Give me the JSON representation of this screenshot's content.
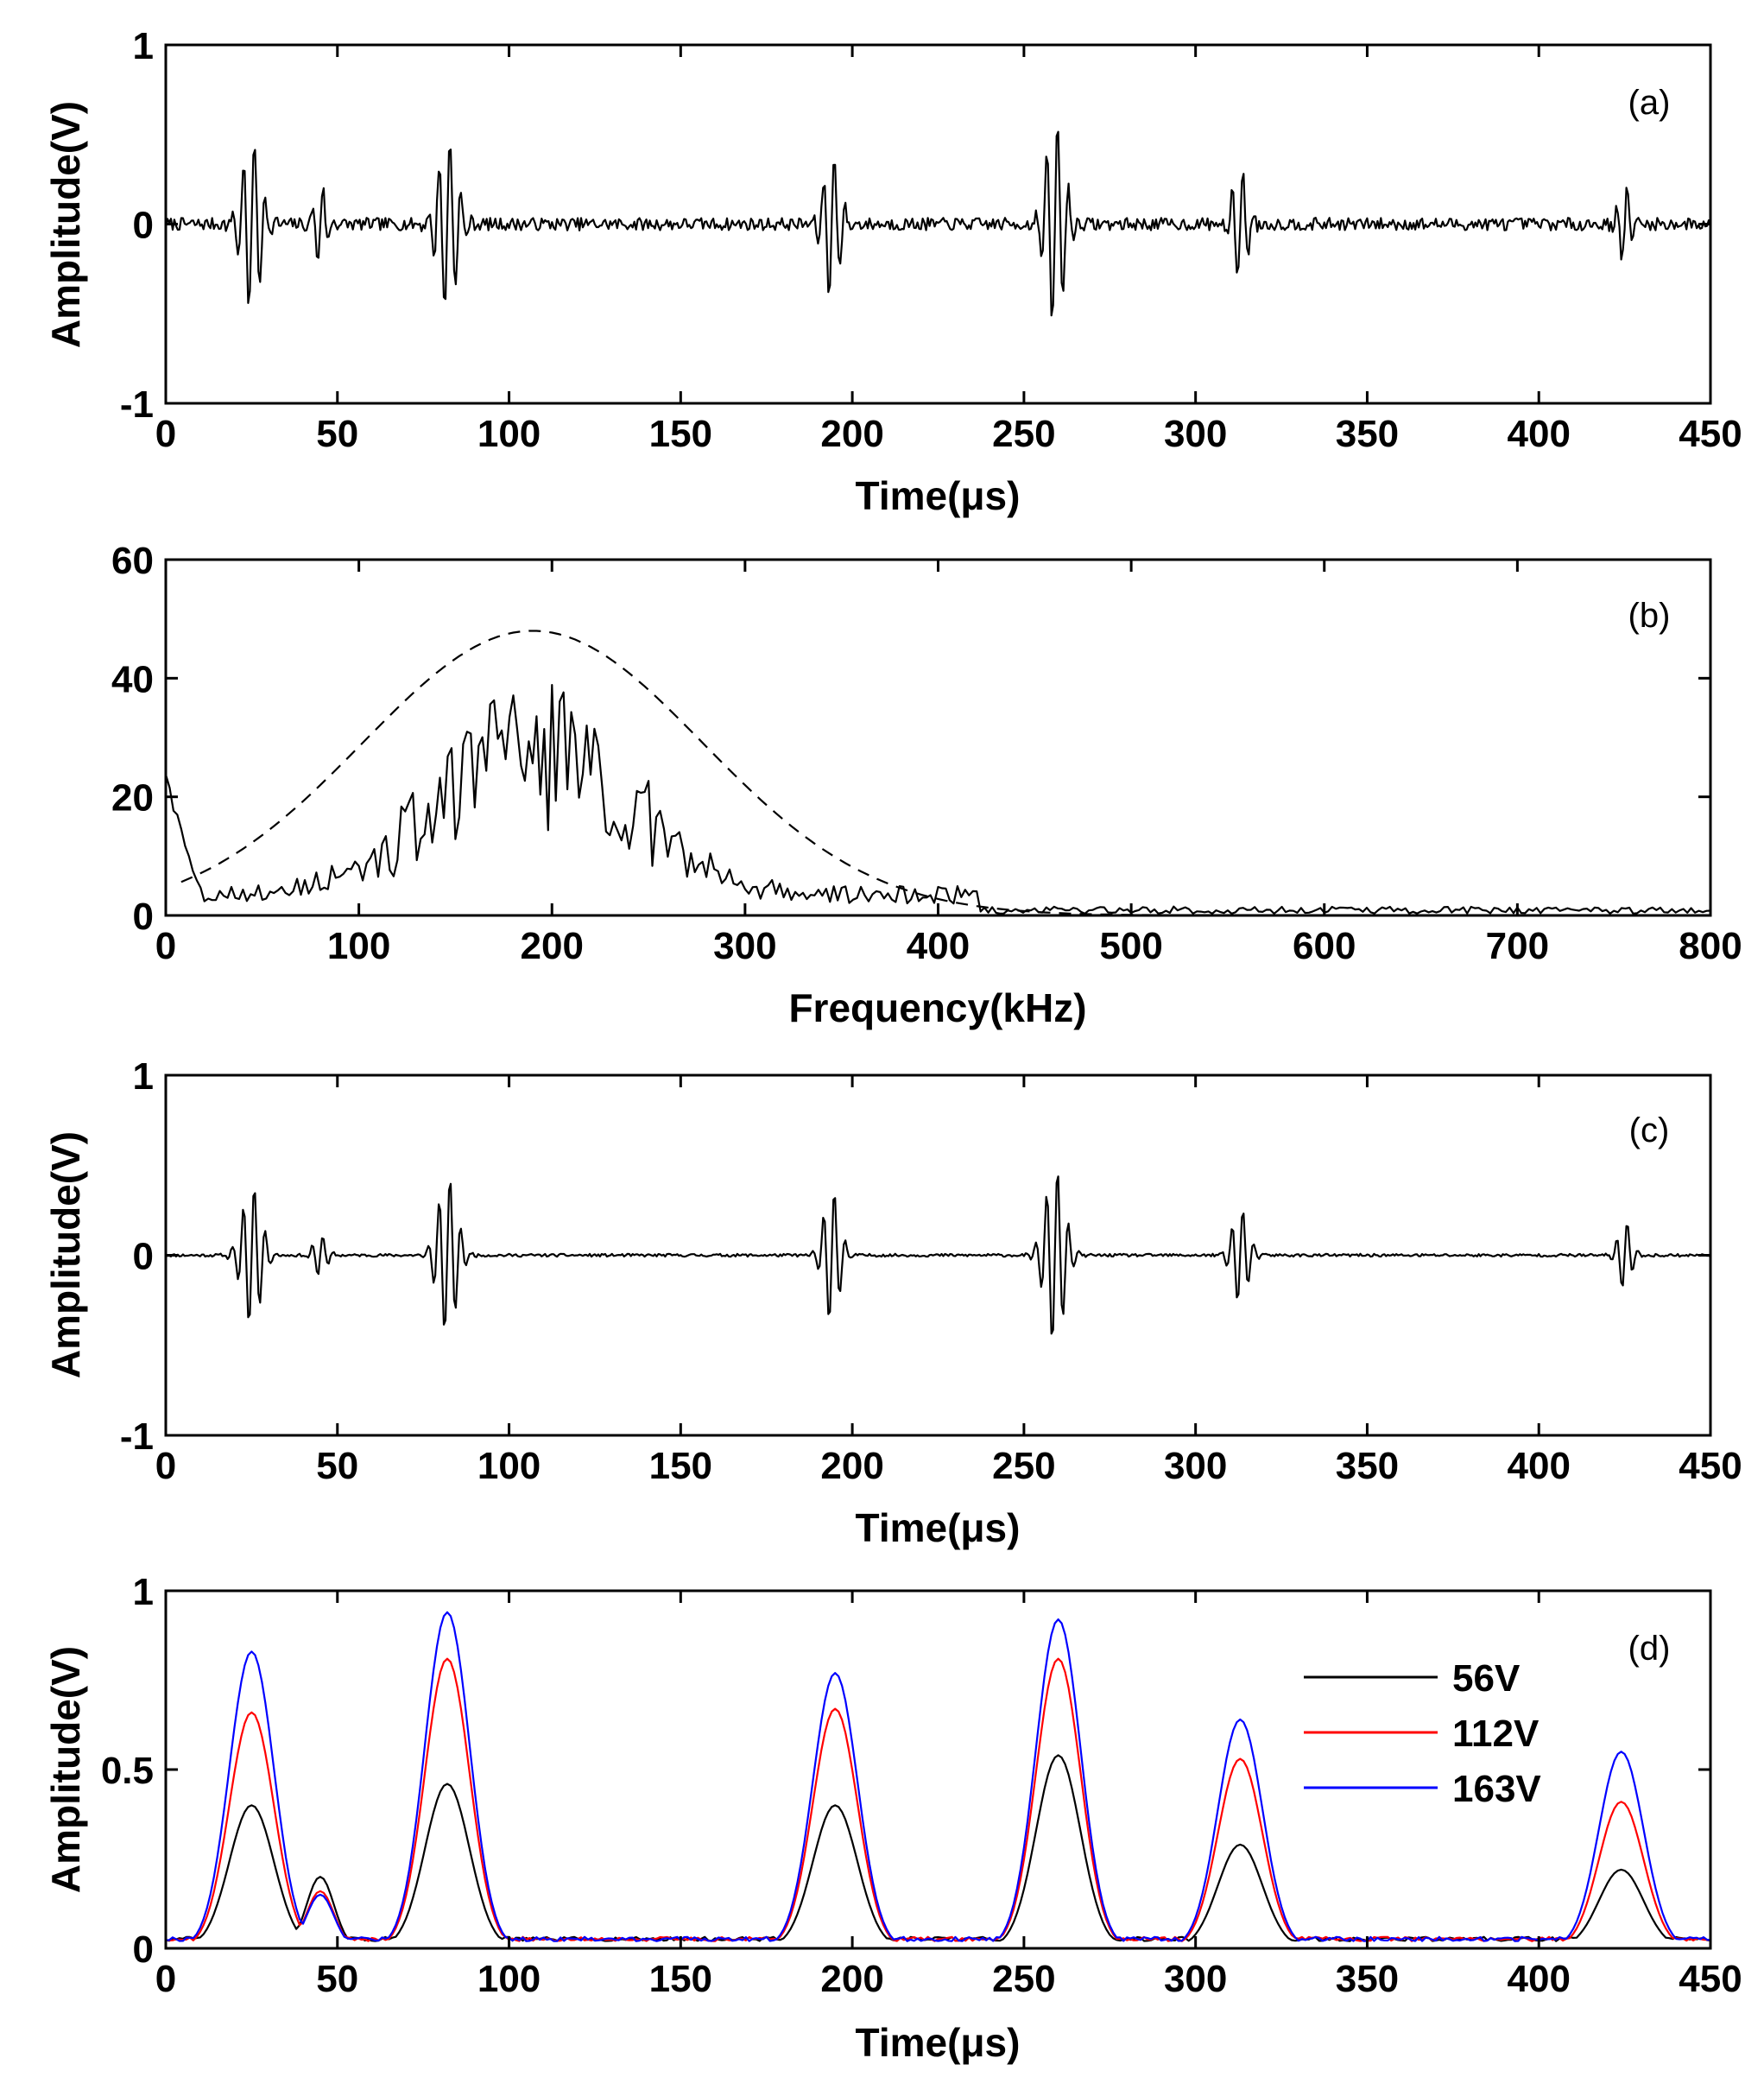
{
  "chart_data": [
    {
      "panel": "(a)",
      "type": "line",
      "xlabel": "Time(μs)",
      "ylabel": "Amplitude(V)",
      "xlim": [
        0,
        450
      ],
      "ylim": [
        -1,
        1
      ],
      "xticks": [
        0,
        50,
        100,
        150,
        200,
        250,
        300,
        350,
        400,
        450
      ],
      "yticks": [
        -1,
        0,
        1
      ],
      "grid": false,
      "series": [
        {
          "color": "#000000",
          "noise": 0.035,
          "packets": [
            {
              "t": 25,
              "amp": 0.5,
              "width": 6
            },
            {
              "t": 45,
              "amp": 0.22,
              "width": 4
            },
            {
              "t": 82,
              "amp": 0.5,
              "width": 6
            },
            {
              "t": 194,
              "amp": 0.42,
              "width": 5
            },
            {
              "t": 259,
              "amp": 0.58,
              "width": 6
            },
            {
              "t": 313,
              "amp": 0.3,
              "width": 5
            },
            {
              "t": 425,
              "amp": 0.22,
              "width": 4
            }
          ]
        }
      ]
    },
    {
      "panel": "(b)",
      "type": "line",
      "xlabel": "Frequency(kHz)",
      "ylabel": "",
      "xlim": [
        0,
        800
      ],
      "ylim": [
        0,
        60
      ],
      "xticks": [
        0,
        100,
        200,
        300,
        400,
        500,
        600,
        700,
        800
      ],
      "yticks": [
        0,
        20,
        40,
        60
      ],
      "grid": false,
      "series": [
        {
          "style": "solid",
          "color": "#000000",
          "center": 190,
          "peak": 32,
          "sigma": 48,
          "start": 22
        },
        {
          "style": "dashed",
          "color": "#000000",
          "center": 190,
          "peak": 48,
          "sigma": 88
        }
      ]
    },
    {
      "panel": "(c)",
      "type": "line",
      "xlabel": "Time(μs)",
      "ylabel": "Amplitude(V)",
      "xlim": [
        0,
        450
      ],
      "ylim": [
        -1,
        1
      ],
      "xticks": [
        0,
        50,
        100,
        150,
        200,
        250,
        300,
        350,
        400,
        450
      ],
      "yticks": [
        -1,
        0,
        1
      ],
      "grid": false,
      "series": [
        {
          "color": "#000000",
          "noise": 0.008,
          "packets": [
            {
              "t": 25,
              "amp": 0.4,
              "width": 6
            },
            {
              "t": 45,
              "amp": 0.12,
              "width": 4
            },
            {
              "t": 82,
              "amp": 0.45,
              "width": 6
            },
            {
              "t": 194,
              "amp": 0.38,
              "width": 5
            },
            {
              "t": 259,
              "amp": 0.5,
              "width": 6
            },
            {
              "t": 313,
              "amp": 0.27,
              "width": 5
            },
            {
              "t": 425,
              "amp": 0.2,
              "width": 4
            }
          ]
        }
      ]
    },
    {
      "panel": "(d)",
      "type": "line",
      "xlabel": "Time(μs)",
      "ylabel": "Amplitude(V)",
      "xlim": [
        0,
        450
      ],
      "ylim": [
        0,
        1
      ],
      "xticks": [
        0,
        50,
        100,
        150,
        200,
        250,
        300,
        350,
        400,
        450
      ],
      "yticks": [
        0,
        0.5,
        1
      ],
      "grid": false,
      "legend": "top-right",
      "peak_times": [
        25,
        45,
        82,
        195,
        260,
        313,
        424
      ],
      "series": [
        {
          "name": "56V",
          "color": "#000000",
          "peaks": [
            0.4,
            0.2,
            0.46,
            0.4,
            0.54,
            0.29,
            0.22
          ]
        },
        {
          "name": "112V",
          "color": "#ff0000",
          "peaks": [
            0.66,
            0.16,
            0.81,
            0.67,
            0.81,
            0.53,
            0.41
          ]
        },
        {
          "name": "163V",
          "color": "#0000ff",
          "peaks": [
            0.83,
            0.15,
            0.94,
            0.77,
            0.92,
            0.64,
            0.55
          ]
        }
      ]
    }
  ]
}
